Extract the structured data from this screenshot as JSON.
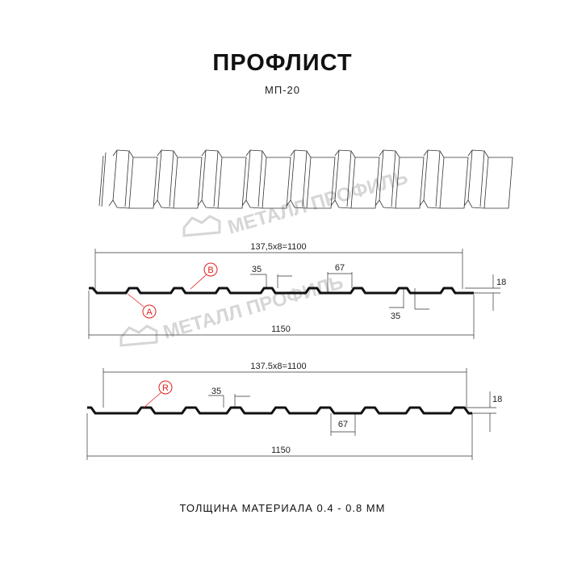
{
  "header": {
    "title": "ПРОФЛИСТ",
    "subtitle": "МП-20"
  },
  "watermark": "МЕТАЛЛ ПРОФИЛЬ",
  "profile_top": {
    "pitch_label": "137,5x8=1100",
    "total_label": "1150",
    "rib_top_label": "35",
    "rib_bottom_label": "35",
    "rib_span_label": "67",
    "height_label": "18",
    "markers": [
      "A",
      "B"
    ]
  },
  "profile_bottom": {
    "pitch_label": "137.5x8=1100",
    "total_label": "1150",
    "rib_top_label": "35",
    "rib_span_label": "67",
    "height_label": "18",
    "markers": [
      "R"
    ]
  },
  "footer": {
    "thickness": "ТОЛЩИНА МАТЕРИАЛА 0.4 - 0.8 ММ"
  },
  "colors": {
    "profile": "#111111",
    "marker": "#e0201b",
    "watermark": "#d6d6d6"
  }
}
